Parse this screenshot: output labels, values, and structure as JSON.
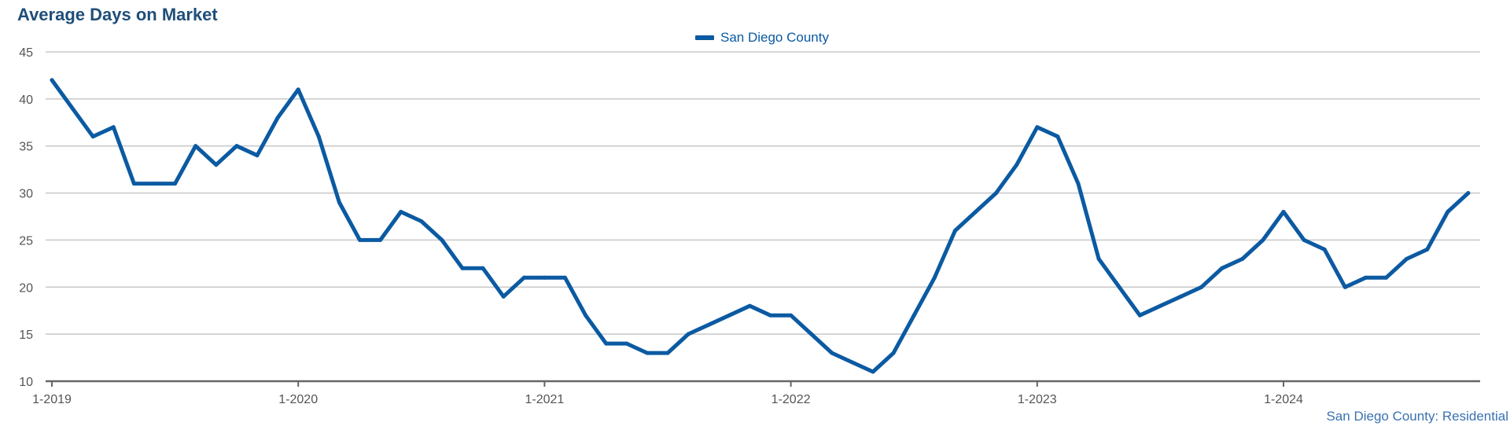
{
  "title": "Average Days on Market",
  "footer": "San Diego County: Residential",
  "colors": {
    "line": "#0b5aa2",
    "grid": "#c8c8c8",
    "axis": "#666666",
    "title": "#1f4e79"
  },
  "chart_data": {
    "type": "line",
    "title": "Average Days on Market",
    "xlabel": "",
    "ylabel": "",
    "ylim": [
      10,
      45
    ],
    "yticks": [
      10,
      15,
      20,
      25,
      30,
      35,
      40,
      45
    ],
    "grid": true,
    "legend_position": "top-center",
    "x_tick_labels": [
      "1-2019",
      "1-2020",
      "1-2021",
      "1-2022",
      "1-2023",
      "1-2024"
    ],
    "x": [
      "1-2019",
      "2-2019",
      "3-2019",
      "4-2019",
      "5-2019",
      "6-2019",
      "7-2019",
      "8-2019",
      "9-2019",
      "10-2019",
      "11-2019",
      "12-2019",
      "1-2020",
      "2-2020",
      "3-2020",
      "4-2020",
      "5-2020",
      "6-2020",
      "7-2020",
      "8-2020",
      "9-2020",
      "10-2020",
      "11-2020",
      "12-2020",
      "1-2021",
      "2-2021",
      "3-2021",
      "4-2021",
      "5-2021",
      "6-2021",
      "7-2021",
      "8-2021",
      "9-2021",
      "10-2021",
      "11-2021",
      "12-2021",
      "1-2022",
      "2-2022",
      "3-2022",
      "4-2022",
      "5-2022",
      "6-2022",
      "7-2022",
      "8-2022",
      "9-2022",
      "10-2022",
      "11-2022",
      "12-2022",
      "1-2023",
      "2-2023",
      "3-2023",
      "4-2023",
      "5-2023",
      "6-2023",
      "7-2023",
      "8-2023",
      "9-2023",
      "10-2023",
      "11-2023",
      "12-2023",
      "1-2024",
      "2-2024",
      "3-2024",
      "4-2024",
      "5-2024",
      "6-2024",
      "7-2024",
      "8-2024",
      "9-2024",
      "10-2024"
    ],
    "series": [
      {
        "name": "San Diego County",
        "values": [
          42,
          39,
          36,
          37,
          31,
          31,
          31,
          35,
          33,
          35,
          34,
          38,
          41,
          36,
          29,
          25,
          25,
          28,
          27,
          25,
          22,
          22,
          19,
          21,
          21,
          21,
          17,
          14,
          14,
          13,
          13,
          15,
          16,
          17,
          18,
          17,
          17,
          15,
          13,
          12,
          11,
          13,
          17,
          21,
          26,
          28,
          30,
          33,
          37,
          36,
          31,
          23,
          20,
          17,
          18,
          19,
          20,
          22,
          23,
          25,
          28,
          25,
          24,
          20,
          21,
          21,
          23,
          24,
          28,
          30
        ]
      }
    ]
  }
}
